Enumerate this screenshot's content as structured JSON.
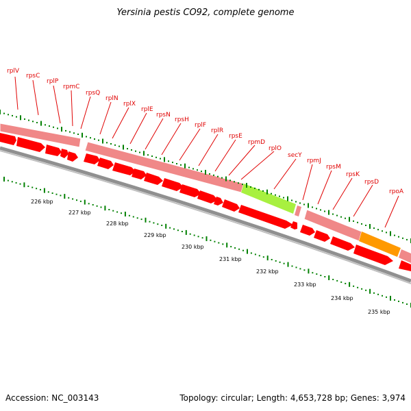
{
  "title": "Yersinia pestis CO92, complete genome",
  "footer": {
    "accession": "Accession: NC_003143",
    "topology": "Topology: circular; Length: 4,653,728 bp; Genes: 3,974"
  },
  "colors": {
    "cds": "#ff0000",
    "gene_band": "#f08888",
    "secY": "#a8f040",
    "rpoA": "#ff9900",
    "gene_label": "#e00000",
    "tick": "#008000",
    "backbone": "#888888"
  },
  "kbp_labels": [
    "226 kbp",
    "227 kbp",
    "228 kbp",
    "229 kbp",
    "230 kbp",
    "231 kbp",
    "232 kbp",
    "233 kbp",
    "234 kbp",
    "235 kbp"
  ],
  "gene_labels": [
    "rplV",
    "rpsC",
    "rplP",
    "rpmC",
    "rpsQ",
    "rplN",
    "rplX",
    "rplE",
    "rpsN",
    "rpsH",
    "rplF",
    "rplR",
    "rpsE",
    "rpmD",
    "rplO",
    "secY",
    "rpmJ",
    "rpsM",
    "rpsK",
    "rpsD",
    "rpoA"
  ]
}
